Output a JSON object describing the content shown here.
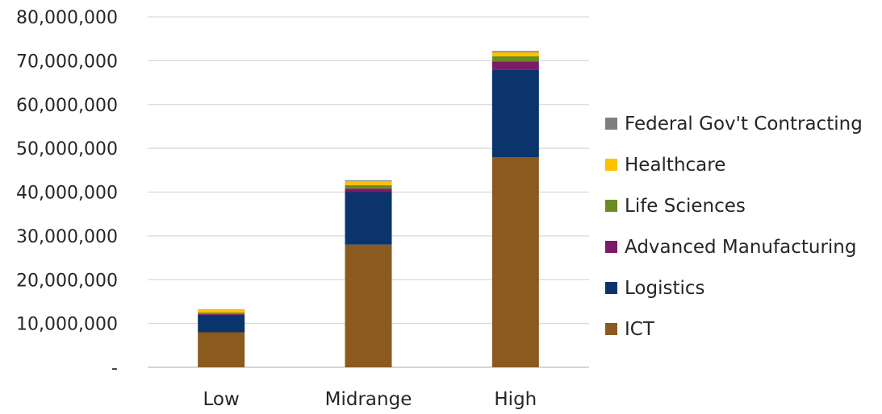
{
  "chart_data": {
    "type": "bar",
    "stacked": true,
    "categories": [
      "Low",
      "Midrange",
      "High"
    ],
    "series": [
      {
        "name": "ICT",
        "color": "#8B5A1E",
        "values": [
          8000000,
          28000000,
          48000000
        ]
      },
      {
        "name": "Logistics",
        "color": "#0A346B",
        "values": [
          4000000,
          12000000,
          20000000
        ]
      },
      {
        "name": "Advanced Manufacturing",
        "color": "#7D1A6A",
        "values": [
          200000,
          800000,
          1800000
        ]
      },
      {
        "name": "Life Sciences",
        "color": "#6A8C21",
        "values": [
          300000,
          800000,
          1200000
        ]
      },
      {
        "name": "Healthcare",
        "color": "#FFC000",
        "values": [
          600000,
          900000,
          900000
        ]
      },
      {
        "name": "Federal Gov't Contracting",
        "color": "#7F7F7F",
        "values": [
          100000,
          200000,
          300000
        ]
      }
    ],
    "y_ticks": [
      "-",
      "10,000,000",
      "20,000,000",
      "30,000,000",
      "40,000,000",
      "50,000,000",
      "60,000,000",
      "70,000,000",
      "80,000,000"
    ],
    "ylim": [
      0,
      80000000
    ],
    "grid": true,
    "legend_position": "right",
    "title": "",
    "xlabel": "",
    "ylabel": ""
  }
}
